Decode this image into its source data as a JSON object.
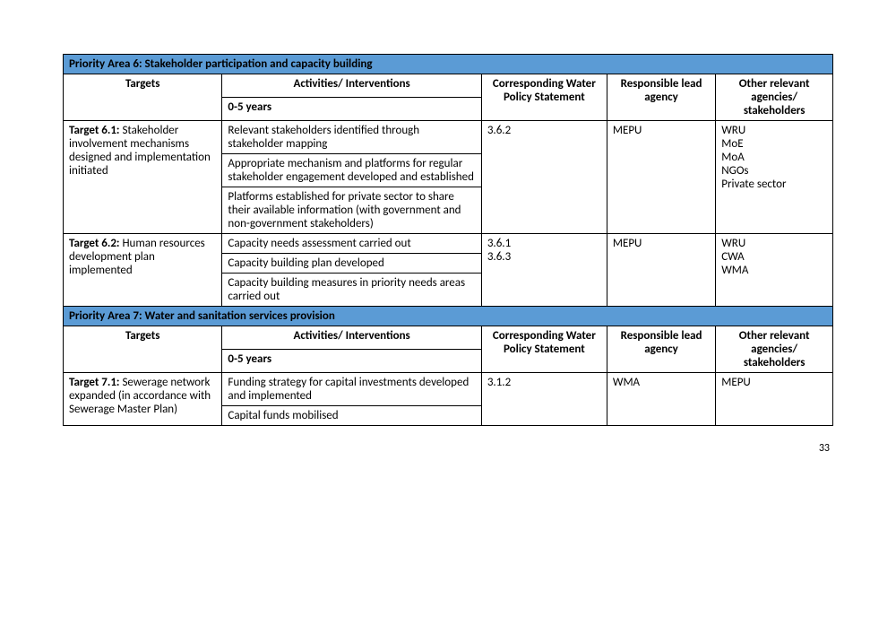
{
  "table": {
    "colors": {
      "header_bg": "#5b9bd5",
      "border": "#000000",
      "text": "#000000"
    },
    "font": {
      "family": "Calibri",
      "size_pt": 10
    },
    "priority6": {
      "title": "Priority Area 6: Stakeholder participation and capacity building",
      "headers": {
        "targets": "Targets",
        "activities": "Activities/ Interventions",
        "corresponding": "Corresponding Water Policy Statement",
        "responsible": "Responsible lead agency",
        "other": "Other relevant agencies/ stakeholders",
        "period": "0-5 years"
      },
      "rows": [
        {
          "target_label": "Target 6.1:",
          "target_text": " Stakeholder involvement mechanisms designed and implementation initiated",
          "activities": [
            "Relevant stakeholders identified through stakeholder mapping",
            "Appropriate mechanism and platforms for regular stakeholder engagement developed and established",
            "Platforms established for private sector to share their available information (with government and non-government stakeholders)"
          ],
          "corresponding": "3.6.2",
          "responsible": "MEPU",
          "other": "WRU\nMoE\nMoA\nNGOs\nPrivate sector"
        },
        {
          "target_label": "Target 6.2:",
          "target_text": " Human resources development plan implemented",
          "activities": [
            "Capacity needs assessment carried out",
            "Capacity building plan developed",
            "Capacity building measures in priority needs areas carried out"
          ],
          "corresponding": "3.6.1\n3.6.3",
          "responsible": "MEPU",
          "other": "WRU\nCWA\nWMA"
        }
      ]
    },
    "priority7": {
      "title": "Priority Area 7: Water and sanitation services provision",
      "headers": {
        "targets": "Targets",
        "activities": "Activities/ Interventions",
        "corresponding": "Corresponding Water Policy Statement",
        "responsible": "Responsible lead agency",
        "other": "Other relevant agencies/ stakeholders",
        "period": "0-5 years"
      },
      "rows": [
        {
          "target_label": "Target 7.1:",
          "target_text": " Sewerage network expanded (in accordance with Sewerage Master Plan)",
          "activities": [
            "Funding strategy for capital investments developed and implemented",
            "Capital funds mobilised"
          ],
          "corresponding": "3.1.2",
          "responsible": "WMA",
          "other": "MEPU"
        }
      ]
    }
  },
  "page_number": "33"
}
